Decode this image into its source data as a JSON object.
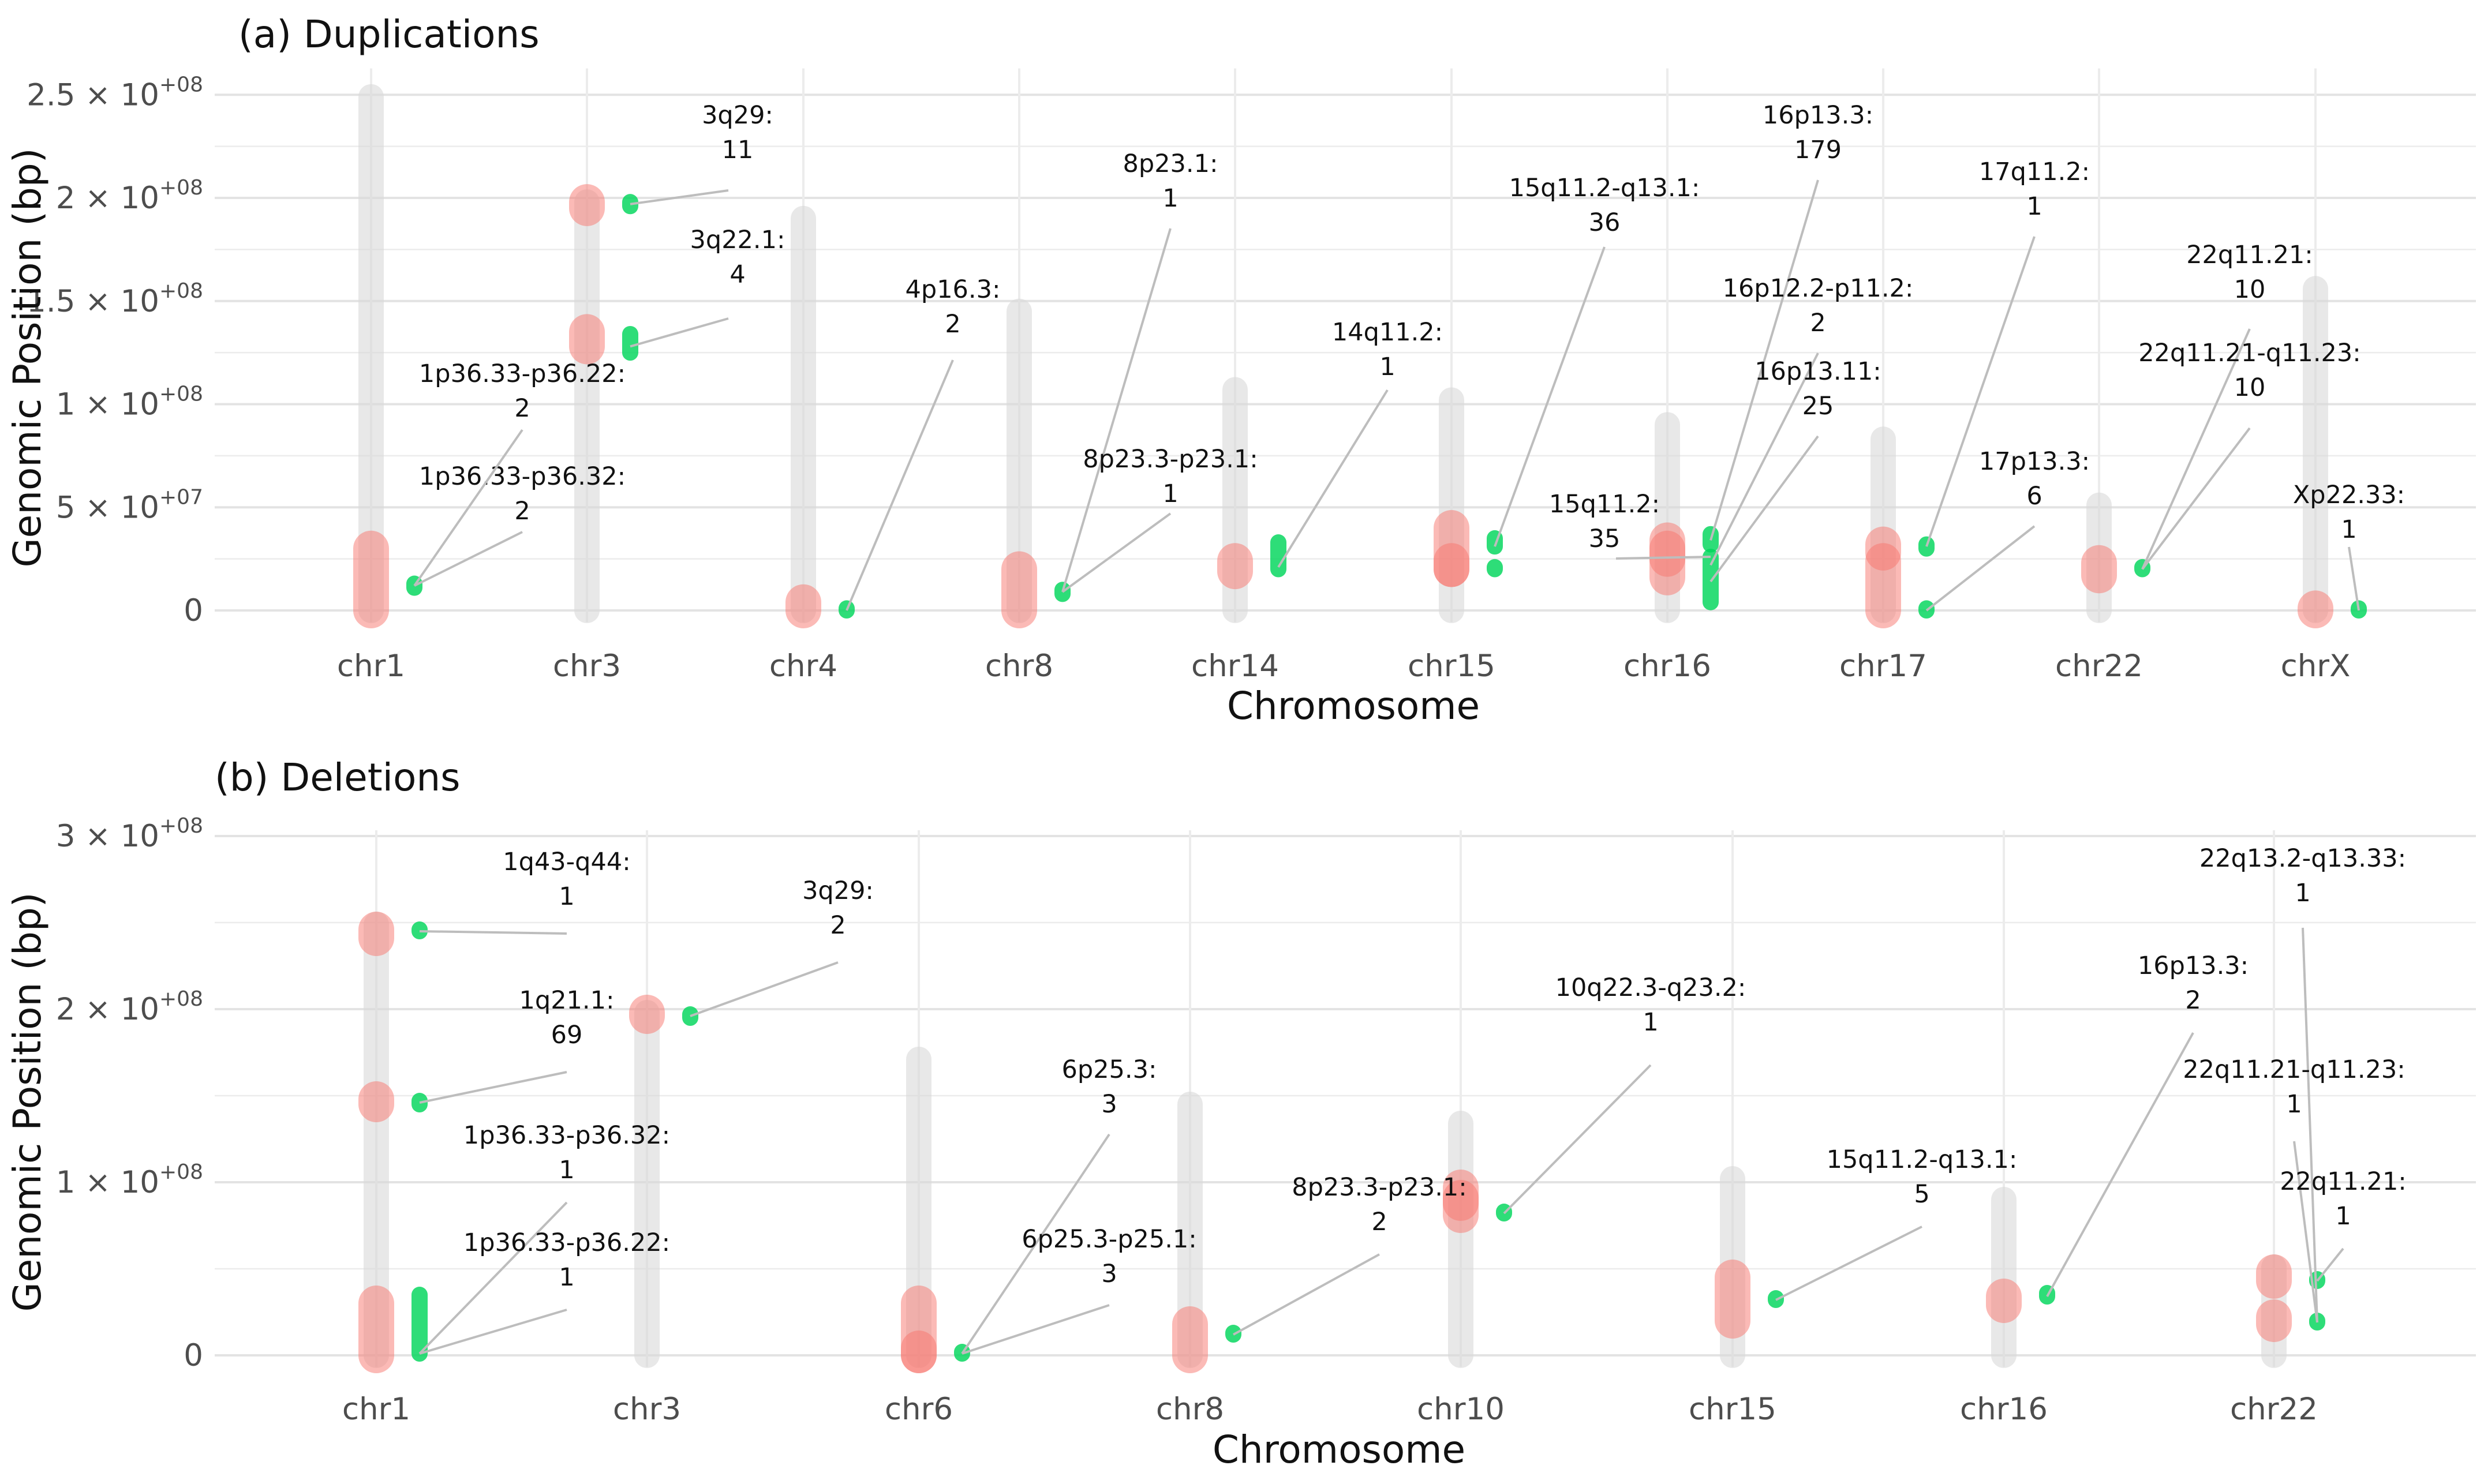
{
  "chart_data": [
    {
      "type": "scatter",
      "title": "(a) Duplications",
      "xlabel": "Chromosome",
      "ylabel": "Genomic Position (bp)",
      "ylim": [
        0,
        260000000
      ],
      "y_ticks": [
        {
          "value": 0,
          "label": "0"
        },
        {
          "value": 50000000,
          "label": "5 × 10^+07"
        },
        {
          "value": 100000000,
          "label": "1 × 10^+08"
        },
        {
          "value": 150000000,
          "label": "1.5 × 10^+08"
        },
        {
          "value": 200000000,
          "label": "2 × 10^+08"
        },
        {
          "value": 250000000,
          "label": "2.5 × 10^+08"
        }
      ],
      "grid": true,
      "categories": [
        "chr1",
        "chr3",
        "chr4",
        "chr8",
        "chr14",
        "chr15",
        "chr16",
        "chr17",
        "chr22",
        "chrX"
      ],
      "chromosome_lengths": [
        249000000,
        198000000,
        190000000,
        145000000,
        107000000,
        102000000,
        90000000,
        83000000,
        51000000,
        156000000
      ],
      "series": [
        {
          "color": "#f8766d",
          "regions": [
            {
              "chr": "chr1",
              "start": 0,
              "end": 30000000
            },
            {
              "chr": "chr3",
              "start": 195000000,
              "end": 198000000
            },
            {
              "chr": "chr3",
              "start": 128000000,
              "end": 135000000
            },
            {
              "chr": "chr4",
              "start": 0,
              "end": 4000000
            },
            {
              "chr": "chr8",
              "start": 0,
              "end": 20000000
            },
            {
              "chr": "chr14",
              "start": 19000000,
              "end": 24000000
            },
            {
              "chr": "chr15",
              "start": 20000000,
              "end": 40000000
            },
            {
              "chr": "chr15",
              "start": 20000000,
              "end": 24000000
            },
            {
              "chr": "chr16",
              "start": 16000000,
              "end": 34000000
            },
            {
              "chr": "chr16",
              "start": 25000000,
              "end": 30000000
            },
            {
              "chr": "chr17",
              "start": 0,
              "end": 24000000
            },
            {
              "chr": "chr17",
              "start": 28000000,
              "end": 32000000
            },
            {
              "chr": "chr22",
              "start": 17000000,
              "end": 23000000
            },
            {
              "chr": "chrX",
              "start": 0,
              "end": 1000000
            }
          ]
        },
        {
          "color": "#00d65a",
          "regions": [
            {
              "chr": "chr1",
              "start": 11000000,
              "end": 13000000
            },
            {
              "chr": "chr3",
              "start": 196000000,
              "end": 198000000
            },
            {
              "chr": "chr3",
              "start": 125000000,
              "end": 134000000
            },
            {
              "chr": "chr4",
              "start": 0,
              "end": 1000000
            },
            {
              "chr": "chr8",
              "start": 8000000,
              "end": 10000000
            },
            {
              "chr": "chr14",
              "start": 20000000,
              "end": 33000000
            },
            {
              "chr": "chr15",
              "start": 20000000,
              "end": 21000000
            },
            {
              "chr": "chr15",
              "start": 31000000,
              "end": 35000000
            },
            {
              "chr": "chr16",
              "start": 4000000,
              "end": 26000000
            },
            {
              "chr": "chr16",
              "start": 32000000,
              "end": 37000000
            },
            {
              "chr": "chr17",
              "start": 0,
              "end": 1000000
            },
            {
              "chr": "chr17",
              "start": 30000000,
              "end": 32000000
            },
            {
              "chr": "chr22",
              "start": 20000000,
              "end": 21000000
            },
            {
              "chr": "chrX",
              "start": 0,
              "end": 1000000
            }
          ]
        }
      ],
      "annotations": [
        {
          "chr": "chr1",
          "y": 12000000,
          "label": "1p36.33-p36.32:",
          "count": "2"
        },
        {
          "chr": "chr1",
          "y": 12000000,
          "label": "1p36.33-p36.22:",
          "count": "2"
        },
        {
          "chr": "chr3",
          "y": 197000000,
          "label": "3q29:",
          "count": "11"
        },
        {
          "chr": "chr3",
          "y": 128000000,
          "label": "3q22.1:",
          "count": "4"
        },
        {
          "chr": "chr4",
          "y": 0,
          "label": "4p16.3:",
          "count": "2"
        },
        {
          "chr": "chr8",
          "y": 9000000,
          "label": "8p23.1:",
          "count": "1"
        },
        {
          "chr": "chr8",
          "y": 9000000,
          "label": "8p23.3-p23.1:",
          "count": "1"
        },
        {
          "chr": "chr14",
          "y": 21000000,
          "label": "14q11.2:",
          "count": "1"
        },
        {
          "chr": "chr15",
          "y": 31000000,
          "label": "15q11.2-q13.1:",
          "count": "36"
        },
        {
          "chr": "chr16",
          "y": 34000000,
          "label": "16p13.3:",
          "count": "179"
        },
        {
          "chr": "chr16",
          "y": 22000000,
          "label": "16p12.2-p11.2:",
          "count": "2"
        },
        {
          "chr": "chr16",
          "y": 14000000,
          "label": "16p13.11:",
          "count": "25"
        },
        {
          "chr": "chr16",
          "y": 26000000,
          "label": "15q11.2:",
          "count": "35"
        },
        {
          "chr": "chr17",
          "y": 31000000,
          "label": "17q11.2:",
          "count": "1"
        },
        {
          "chr": "chr17",
          "y": 0,
          "label": "17p13.3:",
          "count": "6"
        },
        {
          "chr": "chr22",
          "y": 20000000,
          "label": "22q11.21:",
          "count": "10"
        },
        {
          "chr": "chr22",
          "y": 20000000,
          "label": "22q11.21-q11.23:",
          "count": "10"
        },
        {
          "chr": "chrX",
          "y": 0,
          "label": "Xp22.33:",
          "count": "1"
        }
      ]
    },
    {
      "type": "scatter",
      "title": "(b) Deletions",
      "xlabel": "Chromosome",
      "ylabel": "Genomic Position (bp)",
      "ylim": [
        0,
        300000000
      ],
      "y_ticks": [
        {
          "value": 0,
          "label": "0"
        },
        {
          "value": 100000000,
          "label": "1 × 10^+08"
        },
        {
          "value": 200000000,
          "label": "2 × 10^+08"
        },
        {
          "value": 300000000,
          "label": "3 × 10^+08"
        }
      ],
      "grid": true,
      "categories": [
        "chr1",
        "chr3",
        "chr6",
        "chr8",
        "chr10",
        "chr15",
        "chr16",
        "chr22"
      ],
      "chromosome_lengths": [
        249000000,
        198000000,
        171000000,
        145000000,
        134000000,
        102000000,
        90000000,
        51000000
      ],
      "series": [
        {
          "color": "#f8766d",
          "regions": [
            {
              "chr": "chr1",
              "start": 241000000,
              "end": 246000000
            },
            {
              "chr": "chr1",
              "start": 145000000,
              "end": 148000000
            },
            {
              "chr": "chr1",
              "start": 0,
              "end": 30000000
            },
            {
              "chr": "chr3",
              "start": 196000000,
              "end": 198000000
            },
            {
              "chr": "chr6",
              "start": 0,
              "end": 30000000
            },
            {
              "chr": "chr6",
              "start": 0,
              "end": 4000000
            },
            {
              "chr": "chr8",
              "start": 0,
              "end": 18000000
            },
            {
              "chr": "chr10",
              "start": 81000000,
              "end": 97000000
            },
            {
              "chr": "chr10",
              "start": 88000000,
              "end": 91000000
            },
            {
              "chr": "chr15",
              "start": 20000000,
              "end": 45000000
            },
            {
              "chr": "chr16",
              "start": 29000000,
              "end": 34000000
            },
            {
              "chr": "chr22",
              "start": 43000000,
              "end": 48000000
            },
            {
              "chr": "chr22",
              "start": 18000000,
              "end": 22000000
            }
          ]
        },
        {
          "color": "#00d65a",
          "regions": [
            {
              "chr": "chr1",
              "start": 245000000,
              "end": 246000000
            },
            {
              "chr": "chr1",
              "start": 145000000,
              "end": 147000000
            },
            {
              "chr": "chr1",
              "start": 1000000,
              "end": 35000000
            },
            {
              "chr": "chr3",
              "start": 195000000,
              "end": 197000000
            },
            {
              "chr": "chr6",
              "start": 1000000,
              "end": 2000000
            },
            {
              "chr": "chr8",
              "start": 12000000,
              "end": 13000000
            },
            {
              "chr": "chr10",
              "start": 82000000,
              "end": 83000000
            },
            {
              "chr": "chr15",
              "start": 32000000,
              "end": 33000000
            },
            {
              "chr": "chr16",
              "start": 34000000,
              "end": 36000000
            },
            {
              "chr": "chr22",
              "start": 43000000,
              "end": 44000000
            },
            {
              "chr": "chr22",
              "start": 19000000,
              "end": 20000000
            }
          ]
        }
      ],
      "annotations": [
        {
          "chr": "chr1",
          "y": 245000000,
          "label": "1q43-q44:",
          "count": "1"
        },
        {
          "chr": "chr1",
          "y": 146000000,
          "label": "1q21.1:",
          "count": "69"
        },
        {
          "chr": "chr1",
          "y": 1000000,
          "label": "1p36.33-p36.32:",
          "count": "1"
        },
        {
          "chr": "chr1",
          "y": 1000000,
          "label": "1p36.33-p36.22:",
          "count": "1"
        },
        {
          "chr": "chr3",
          "y": 196000000,
          "label": "3q29:",
          "count": "2"
        },
        {
          "chr": "chr6",
          "y": 1000000,
          "label": "6p25.3:",
          "count": "3"
        },
        {
          "chr": "chr6",
          "y": 1000000,
          "label": "6p25.3-p25.1:",
          "count": "3"
        },
        {
          "chr": "chr8",
          "y": 12000000,
          "label": "8p23.3-p23.1:",
          "count": "2"
        },
        {
          "chr": "chr10",
          "y": 82000000,
          "label": "10q22.3-q23.2:",
          "count": "1"
        },
        {
          "chr": "chr15",
          "y": 32000000,
          "label": "15q11.2-q13.1:",
          "count": "5"
        },
        {
          "chr": "chr16",
          "y": 34000000,
          "label": "16p13.3:",
          "count": "2"
        },
        {
          "chr": "chr22",
          "y": 19000000,
          "label": "22q13.2-q13.33:",
          "count": "1"
        },
        {
          "chr": "chr22",
          "y": 19000000,
          "label": "22q11.21-q11.23:",
          "count": "1"
        },
        {
          "chr": "chr22",
          "y": 43000000,
          "label": "22q11.21:",
          "count": "1"
        }
      ]
    }
  ]
}
